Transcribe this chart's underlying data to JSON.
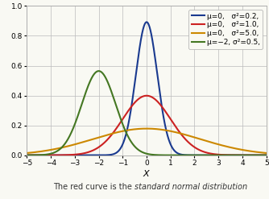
{
  "xlabel": "$X$",
  "caption_normal": "The red curve is the ",
  "caption_italic": "standard normal distribution",
  "xlim": [
    -5,
    5
  ],
  "ylim": [
    0,
    1.0
  ],
  "yticks": [
    0.0,
    0.2,
    0.4,
    0.6,
    0.8,
    1.0
  ],
  "xticks": [
    -5,
    -4,
    -3,
    -2,
    -1,
    0,
    1,
    2,
    3,
    4,
    5
  ],
  "curves": [
    {
      "mu": 0,
      "sigma2": 0.2,
      "color": "#1a3a8f",
      "lw": 1.5,
      "label": "μ=0,   σ²=0.2,"
    },
    {
      "mu": 0,
      "sigma2": 1.0,
      "color": "#cc2222",
      "lw": 1.5,
      "label": "μ=0,   σ²=1.0,"
    },
    {
      "mu": 0,
      "sigma2": 5.0,
      "color": "#cc8800",
      "lw": 1.5,
      "label": "μ=0,   σ²=5.0,"
    },
    {
      "mu": -2,
      "sigma2": 0.5,
      "color": "#447722",
      "lw": 1.5,
      "label": "μ=−2, σ²=0.5,"
    }
  ],
  "background_color": "#f9f9f3",
  "grid_color": "#bbbbbb",
  "legend_fontsize": 6.5,
  "tick_fontsize": 6.5,
  "xlabel_fontsize": 8,
  "caption_fontsize": 7
}
